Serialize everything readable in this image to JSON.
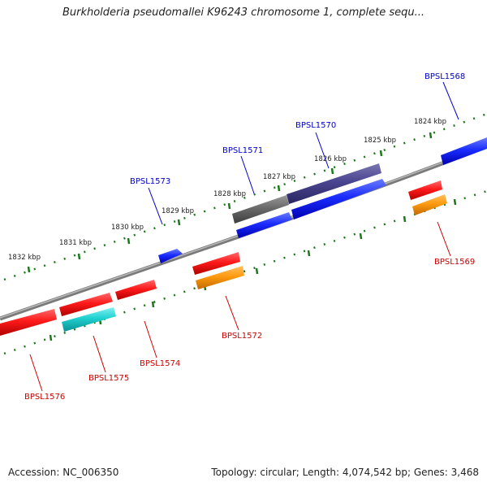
{
  "title": "Burkholderia pseudomallei K96243 chromosome 1, complete sequ...",
  "footer": {
    "accession": "Accession: NC_006350",
    "summary": "Topology: circular; Length: 4,074,542 bp; Genes: 3,468"
  },
  "colors": {
    "backbone": "#808080",
    "forward_label": "#0000cc",
    "reverse_label": "#cc0000",
    "tick": "#1a7a1a"
  },
  "kbp_ticks": [
    "1824 kbp",
    "1825 kbp",
    "1826 kbp",
    "1827 kbp",
    "1828 kbp",
    "1829 kbp",
    "1830 kbp",
    "1831 kbp",
    "1832 kbp"
  ],
  "gene_labels": [
    {
      "id": "BPSL1568",
      "strand": "forward"
    },
    {
      "id": "BPSL1570",
      "strand": "forward"
    },
    {
      "id": "BPSL1571",
      "strand": "forward"
    },
    {
      "id": "BPSL1573",
      "strand": "forward"
    },
    {
      "id": "BPSL1569",
      "strand": "reverse"
    },
    {
      "id": "BPSL1572",
      "strand": "reverse"
    },
    {
      "id": "BPSL1574",
      "strand": "reverse"
    },
    {
      "id": "BPSL1575",
      "strand": "reverse"
    },
    {
      "id": "BPSL1576",
      "strand": "reverse"
    }
  ]
}
